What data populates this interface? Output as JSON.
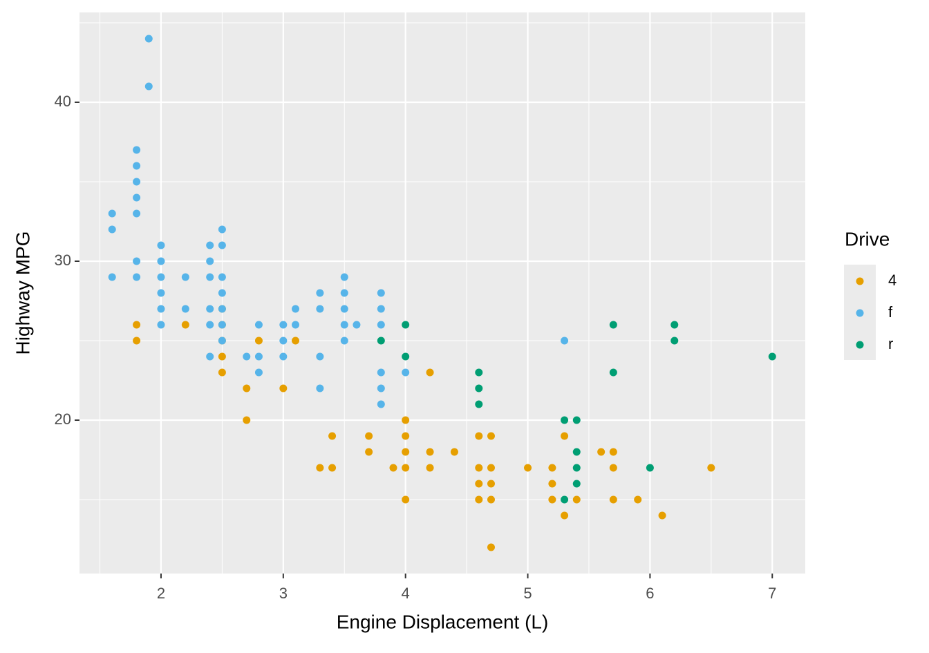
{
  "chart_data": {
    "type": "scatter",
    "x_label": "Engine Displacement (L)",
    "y_label": "Highway MPG",
    "legend_title": "Drive",
    "xlim": [
      1.333,
      7.27
    ],
    "ylim": [
      10.35,
      45.65
    ],
    "xticks": [
      2,
      3,
      4,
      5,
      6,
      7
    ],
    "yticks": [
      20,
      30,
      40
    ],
    "grid": true,
    "legend": "right",
    "series": [
      {
        "name": "4",
        "color": "#E69F00",
        "x": [
          1.8,
          1.8,
          2.2,
          2.5,
          2.5,
          2.5,
          2.5,
          2.5,
          2.7,
          2.7,
          2.8,
          3.0,
          3.1,
          3.3,
          3.4,
          3.4,
          3.7,
          3.7,
          3.9,
          4.0,
          4.0,
          4.0,
          4.0,
          4.0,
          4.2,
          4.2,
          4.2,
          4.4,
          4.6,
          4.6,
          4.6,
          4.6,
          4.7,
          4.7,
          4.7,
          4.7,
          4.7,
          5.0,
          5.2,
          5.2,
          5.2,
          5.3,
          5.3,
          5.4,
          5.6,
          5.7,
          5.7,
          5.7,
          5.9,
          6.1,
          6.5
        ],
        "y": [
          26,
          25,
          26,
          27,
          26,
          25,
          24,
          23,
          22,
          20,
          25,
          22,
          25,
          17,
          19,
          17,
          19,
          18,
          17,
          20,
          19,
          18,
          17,
          15,
          23,
          18,
          17,
          18,
          19,
          17,
          16,
          15,
          19,
          17,
          16,
          15,
          12,
          17,
          17,
          16,
          15,
          19,
          14,
          15,
          18,
          18,
          17,
          15,
          15,
          14,
          17
        ]
      },
      {
        "name": "f",
        "color": "#56B4E9",
        "x": [
          1.6,
          1.6,
          1.6,
          1.8,
          1.8,
          1.8,
          1.8,
          1.8,
          1.8,
          1.8,
          1.9,
          1.9,
          2.0,
          2.0,
          2.0,
          2.0,
          2.0,
          2.0,
          2.2,
          2.2,
          2.4,
          2.4,
          2.4,
          2.4,
          2.4,
          2.4,
          2.5,
          2.5,
          2.5,
          2.5,
          2.5,
          2.5,
          2.5,
          2.7,
          2.8,
          2.8,
          2.8,
          3.0,
          3.0,
          3.0,
          3.1,
          3.1,
          3.3,
          3.3,
          3.3,
          3.3,
          3.5,
          3.5,
          3.5,
          3.5,
          3.5,
          3.6,
          3.8,
          3.8,
          3.8,
          3.8,
          3.8,
          3.8,
          4.0,
          5.3
        ],
        "y": [
          33,
          32,
          29,
          37,
          36,
          35,
          34,
          33,
          30,
          29,
          44,
          41,
          31,
          30,
          29,
          28,
          27,
          26,
          29,
          27,
          31,
          30,
          29,
          27,
          26,
          24,
          32,
          31,
          29,
          28,
          27,
          26,
          25,
          24,
          26,
          24,
          23,
          26,
          25,
          24,
          27,
          26,
          28,
          27,
          24,
          22,
          29,
          28,
          27,
          26,
          25,
          26,
          28,
          27,
          26,
          23,
          22,
          21,
          23,
          25
        ]
      },
      {
        "name": "r",
        "color": "#009E73",
        "x": [
          3.8,
          4.0,
          4.0,
          4.6,
          4.6,
          4.6,
          5.3,
          5.3,
          5.4,
          5.4,
          5.4,
          5.4,
          5.7,
          5.7,
          6.0,
          6.2,
          6.2,
          7.0
        ],
        "y": [
          25,
          26,
          24,
          23,
          22,
          21,
          20,
          15,
          20,
          18,
          17,
          16,
          26,
          23,
          17,
          26,
          25,
          24
        ]
      }
    ]
  }
}
